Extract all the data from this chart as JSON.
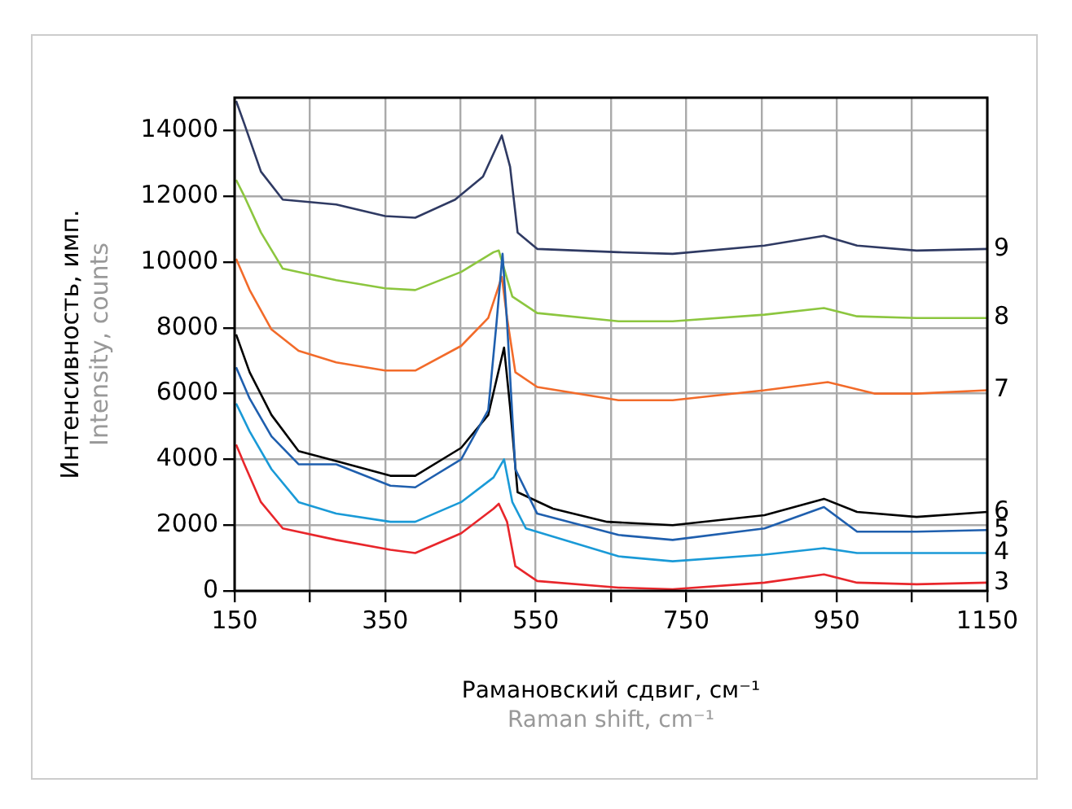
{
  "chart_data": {
    "type": "line",
    "xlabel": "Рамановский сдвиг, см⁻¹\nRaman shift, cm⁻¹",
    "ylabel": "Интенсивность, имп.\nIntensity, counts",
    "xlim": [
      150,
      1150
    ],
    "xticks": [
      150,
      {
        "value": 250,
        "label": null
      },
      350,
      {
        "value": 450,
        "label": null
      },
      550,
      {
        "value": 650,
        "label": null
      },
      750,
      {
        "value": 850,
        "label": null
      },
      950,
      {
        "value": 1050,
        "label": null
      },
      1150
    ],
    "ylim": [
      0,
      15000
    ],
    "yticks": [
      0,
      2000,
      4000,
      6000,
      8000,
      10000,
      12000,
      14000
    ],
    "grid": true,
    "legend": false,
    "marker": "none",
    "line_style": "solid",
    "series": [
      {
        "name": "3",
        "color": "#e8262b",
        "x": [
          152,
          163,
          185,
          214,
          285,
          357,
          390,
          451,
          494,
          501,
          512,
          523,
          552,
          660,
          732,
          854,
          933,
          977,
          1056,
          1150
        ],
        "values": [
          4450,
          3850,
          2700,
          1900,
          1550,
          1250,
          1150,
          1750,
          2500,
          2650,
          2100,
          750,
          300,
          100,
          50,
          250,
          500,
          250,
          200,
          250
        ]
      },
      {
        "name": "4",
        "color": "#1a9ad7",
        "x": [
          152,
          170,
          199,
          235,
          285,
          357,
          390,
          451,
          494,
          508,
          519,
          537,
          660,
          732,
          854,
          933,
          977,
          1056,
          1150
        ],
        "values": [
          5700,
          4850,
          3700,
          2700,
          2350,
          2100,
          2100,
          2700,
          3450,
          4000,
          2700,
          1900,
          1050,
          900,
          1100,
          1300,
          1150,
          1150,
          1150
        ]
      },
      {
        "name": "5",
        "color": "#1f5fae",
        "x": [
          152,
          170,
          199,
          235,
          285,
          357,
          390,
          451,
          487,
          498,
          506,
          512,
          523,
          552,
          660,
          732,
          854,
          933,
          977,
          1056,
          1150
        ],
        "values": [
          6800,
          5850,
          4700,
          3850,
          3850,
          3200,
          3150,
          4000,
          5500,
          8150,
          10250,
          8150,
          3700,
          2350,
          1700,
          1550,
          1900,
          2550,
          1800,
          1800,
          1850
        ]
      },
      {
        "name": "6",
        "color": "#000000",
        "x": [
          152,
          170,
          199,
          235,
          285,
          357,
          390,
          451,
          487,
          508,
          516,
          526,
          573,
          645,
          732,
          854,
          933,
          977,
          1056,
          1150
        ],
        "values": [
          7800,
          6650,
          5350,
          4250,
          3950,
          3500,
          3500,
          4350,
          5350,
          7400,
          5600,
          3000,
          2500,
          2100,
          2000,
          2300,
          2800,
          2400,
          2250,
          2400
        ]
      },
      {
        "name": "7",
        "color": "#f26b2a",
        "x": [
          152,
          170,
          199,
          235,
          285,
          350,
          390,
          451,
          487,
          505,
          512,
          523,
          552,
          660,
          732,
          854,
          938,
          1000,
          1056,
          1150
        ],
        "values": [
          10100,
          9150,
          7950,
          7300,
          6950,
          6700,
          6700,
          7450,
          8300,
          9550,
          8300,
          6650,
          6200,
          5800,
          5800,
          6100,
          6350,
          6000,
          6000,
          6100
        ]
      },
      {
        "name": "8",
        "color": "#8cc63f",
        "x": [
          152,
          163,
          185,
          214,
          285,
          350,
          390,
          451,
          494,
          501,
          519,
          552,
          660,
          732,
          854,
          933,
          977,
          1056,
          1150
        ],
        "values": [
          12500,
          12000,
          10900,
          9800,
          9450,
          9200,
          9150,
          9700,
          10300,
          10350,
          8950,
          8450,
          8200,
          8200,
          8400,
          8600,
          8350,
          8300,
          8300
        ]
      },
      {
        "name": "9",
        "color": "#2f3a63",
        "x": [
          152,
          163,
          185,
          214,
          285,
          350,
          390,
          443,
          480,
          505,
          516,
          526,
          552,
          660,
          732,
          854,
          933,
          977,
          1056,
          1150
        ],
        "values": [
          14900,
          14200,
          12750,
          11900,
          11750,
          11400,
          11350,
          11900,
          12600,
          13850,
          12900,
          10900,
          10400,
          10300,
          10250,
          10500,
          10800,
          10500,
          10350,
          10400
        ]
      }
    ]
  }
}
